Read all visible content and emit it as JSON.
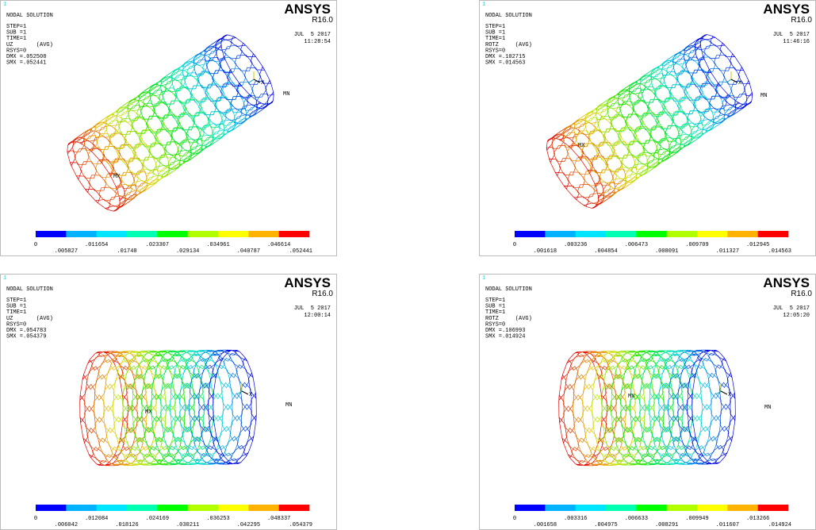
{
  "panels": [
    {
      "index": "1",
      "title": "NODAL SOLUTION",
      "info": [
        "STEP=1",
        "SUB =1",
        "TIME=1",
        "UZ       (AVG)",
        "RSYS=0",
        "DMX =.052508",
        "SMX =.052441"
      ],
      "brand": "ANSYS",
      "version": "R16.0",
      "date": "JUL  5 2017",
      "time": "11:28:54",
      "mx": "MX",
      "mn": "MN",
      "axis": "X",
      "legend": [
        "0",
        ".005827",
        ".011654",
        ".01748",
        ".023307",
        ".029134",
        ".034961",
        ".040787",
        ".046614",
        ".052441"
      ]
    },
    {
      "index": "1",
      "title": "NODAL SOLUTION",
      "info": [
        "STEP=1",
        "SUB =1",
        "TIME=1",
        "ROTZ     (AVG)",
        "RSYS=0",
        "DMX =.102715",
        "SMX =.014563"
      ],
      "brand": "ANSYS",
      "version": "R16.0",
      "date": "JUL  5 2017",
      "time": "11:46:16",
      "mx": "MX",
      "mn": "MN",
      "axis": "X",
      "legend": [
        "0",
        ".001618",
        ".003236",
        ".004854",
        ".006473",
        ".008091",
        ".009709",
        ".011327",
        ".012945",
        ".014563"
      ]
    },
    {
      "index": "1",
      "title": "NODAL SOLUTION",
      "info": [
        "STEP=1",
        "SUB =1",
        "TIME=1",
        "UZ       (AVG)",
        "RSYS=0",
        "DMX =.054783",
        "SMX =.054379"
      ],
      "brand": "ANSYS",
      "version": "R16.0",
      "date": "JUL  5 2017",
      "time": "12:00:14",
      "mx": "MX",
      "mn": "MN",
      "axis": "X",
      "legend": [
        "0",
        ".006042",
        ".012084",
        ".018126",
        ".024169",
        ".030211",
        ".036253",
        ".042295",
        ".048337",
        ".054379"
      ]
    },
    {
      "index": "1",
      "title": "NODAL SOLUTION",
      "info": [
        "STEP=1",
        "SUB =1",
        "TIME=1",
        "ROTZ     (AVG)",
        "RSYS=0",
        "DMX =.106993",
        "SMX =.014924"
      ],
      "brand": "ANSYS",
      "version": "R16.0",
      "date": "JUL  5 2017",
      "time": "12:05:20",
      "mx": "MX",
      "mn": "MN",
      "axis": "X",
      "legend": [
        "0",
        ".001658",
        ".003316",
        ".004975",
        ".006633",
        ".008291",
        ".009949",
        ".011607",
        ".013266",
        ".014924"
      ]
    }
  ]
}
